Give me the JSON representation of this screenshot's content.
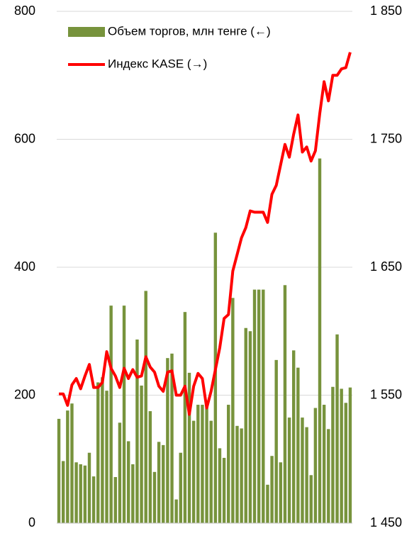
{
  "chart_data": {
    "type": "bar_line",
    "series": [
      {
        "name": "Объем торгов, млн тенге (←)",
        "type": "bar",
        "axis": "y",
        "color": "#77933c",
        "values": [
          163,
          97,
          176,
          187,
          95,
          92,
          90,
          110,
          73,
          220,
          228,
          207,
          340,
          72,
          157,
          340,
          128,
          92,
          287,
          215,
          363,
          175,
          80,
          127,
          122,
          258,
          265,
          37,
          110,
          330,
          235,
          160,
          185,
          185,
          190,
          160,
          454,
          117,
          102,
          185,
          352,
          152,
          148,
          305,
          300,
          365,
          365,
          365,
          60,
          105,
          255,
          95,
          372,
          165,
          270,
          243,
          165,
          150,
          75,
          180,
          570,
          185,
          147,
          213,
          295,
          210,
          188,
          212
        ]
      },
      {
        "name": "Индекс KASE (→)",
        "type": "line",
        "axis": "y2",
        "color": "#ff0000",
        "values": [
          1551,
          1551,
          1542,
          1558,
          1563,
          1555,
          1565,
          1574,
          1556,
          1556,
          1560,
          1584,
          1571,
          1565,
          1556,
          1571,
          1563,
          1570,
          1564,
          1565,
          1580,
          1572,
          1568,
          1557,
          1553,
          1568,
          1569,
          1550,
          1550,
          1557,
          1535,
          1557,
          1567,
          1563,
          1540,
          1553,
          1570,
          1587,
          1610,
          1613,
          1647,
          1660,
          1673,
          1681,
          1694,
          1693,
          1693,
          1693,
          1685,
          1707,
          1714,
          1730,
          1746,
          1736,
          1754,
          1769,
          1740,
          1744,
          1733,
          1741,
          1770,
          1795,
          1780,
          1800,
          1800,
          1805,
          1806,
          1818
        ]
      }
    ],
    "ylim": [
      0,
      800
    ],
    "yticks": [
      0,
      200,
      400,
      600,
      800
    ],
    "y2lim": [
      1450,
      1850
    ],
    "y2ticks": [
      {
        "value": 1450,
        "label": "1 450"
      },
      {
        "value": 1550,
        "label": "1 550"
      },
      {
        "value": 1650,
        "label": "1 650"
      },
      {
        "value": 1750,
        "label": "1 750"
      },
      {
        "value": 1850,
        "label": "1 850"
      }
    ],
    "grid": true,
    "legend": "top"
  }
}
